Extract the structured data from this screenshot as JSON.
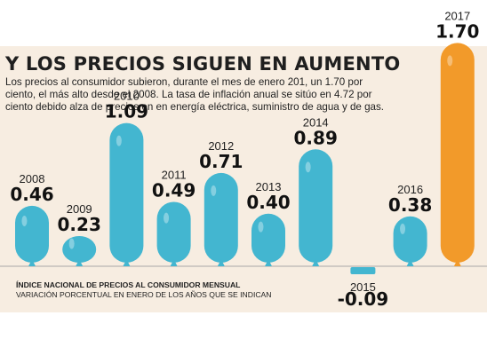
{
  "header": {
    "title": "Y LOS PRECIOS SIGUEN EN AUMENTO",
    "subtitle": "Los precios al consumidor subieron, durante el mes de enero 201, un 1.70 por ciento, el más alto desde el 2008. La tasa de inflación anual se sitúo en 4.72 por ciento debido alza de precios en en energía eléctrica, suministro de agua y de gas."
  },
  "footnote": {
    "line1": "ÍNDICE NACIONAL DE PRECIOS AL CONSUMIDOR MENSUAL",
    "line2": "VARIACIÓN PORCENTUAL EN ENERO DE LOS AÑOS QUE SE INDICAN"
  },
  "colors": {
    "balloon": "#43b6d0",
    "highlight": "#f29a2a",
    "panel": "#f7ede1",
    "baseline": "#a8a8a8"
  },
  "chart_data": {
    "type": "bar",
    "title": "Y LOS PRECIOS SIGUEN EN AUMENTO",
    "categories": [
      "2008",
      "2009",
      "2010",
      "2011",
      "2012",
      "2013",
      "2014",
      "2015",
      "2016",
      "2017"
    ],
    "values": [
      0.46,
      0.23,
      1.09,
      0.49,
      0.71,
      0.4,
      0.89,
      -0.09,
      0.38,
      1.7
    ],
    "value_labels": [
      "0.46",
      "0.23",
      "1.09",
      "0.49",
      "0.71",
      "0.40",
      "0.89",
      "-0.09",
      "0.38",
      "1.70"
    ],
    "highlight": "2017",
    "ylim": [
      -0.09,
      1.7
    ],
    "grid": false,
    "legend": "none"
  }
}
